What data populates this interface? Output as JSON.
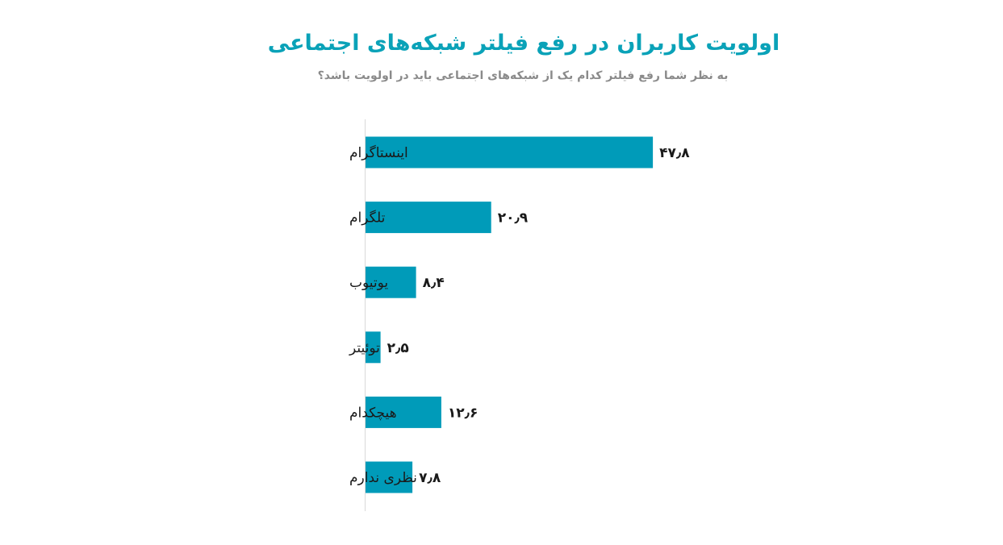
{
  "chart_data": {
    "type": "bar",
    "orientation": "horizontal",
    "title": "اولویت کاربران در رفع فیلتر شبکه‌های اجتماعی",
    "subtitle": "به نظر شما رفع فیلتر کدام یک از شبکه‌های اجتماعی باید در اولویت باشد؟",
    "categories": [
      "اینستاگرام",
      "تلگرام",
      "یوتیوب",
      "توئیتر",
      "هیچکدام",
      "نظری ندارم"
    ],
    "values": [
      47.8,
      20.9,
      8.4,
      2.5,
      12.6,
      7.8
    ],
    "value_labels": [
      "۴۷٫۸",
      "۲۰٫۹",
      "۸٫۴",
      "۲٫۵",
      "۱۲٫۶",
      "۷٫۸"
    ],
    "xlabel": "",
    "ylabel": "",
    "grid": false,
    "legend": "none",
    "bar_color": "#009bb9"
  }
}
